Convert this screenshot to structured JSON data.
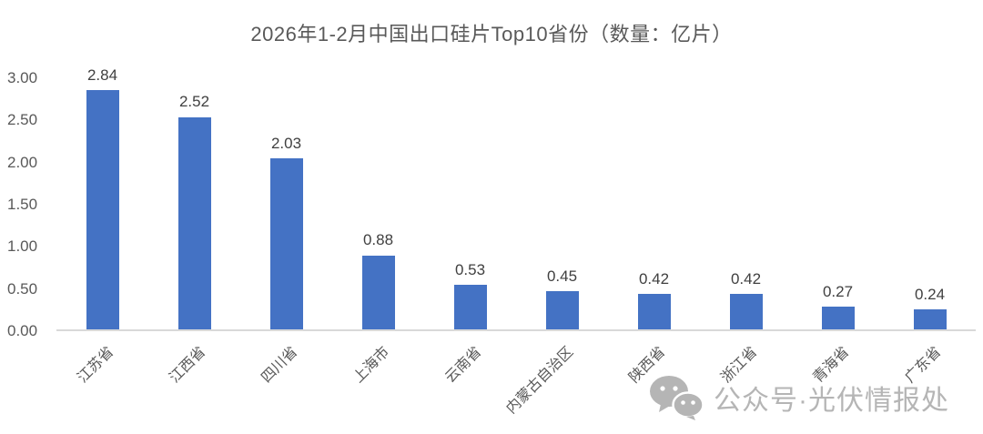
{
  "chart_data": {
    "type": "bar",
    "title": "2026年1-2月中国出口硅片Top10省份（数量：亿片）",
    "categories": [
      "江苏省",
      "江西省",
      "四川省",
      "上海市",
      "云南省",
      "内蒙古自治区",
      "陕西省",
      "浙江省",
      "青海省",
      "广东省"
    ],
    "values": [
      2.84,
      2.52,
      2.03,
      0.88,
      0.53,
      0.45,
      0.42,
      0.42,
      0.27,
      0.24
    ],
    "xlabel": "",
    "ylabel": "",
    "ylim": [
      0,
      3.0
    ],
    "ytick_step": 0.5,
    "ytick_decimals": 2,
    "grid": false,
    "legend": false,
    "value_labels": true,
    "bar_color": "#4472C4"
  },
  "colors": {
    "bar": "#4472C4",
    "title_text": "#595959",
    "axis_text": "#595959",
    "value_label_text": "#404040",
    "axis_line": "#d9d9d9",
    "watermark": "#b5b5b5",
    "background": "#ffffff"
  },
  "watermark": {
    "icon": "wechat-icon",
    "text": "公众号·光伏情报处"
  }
}
